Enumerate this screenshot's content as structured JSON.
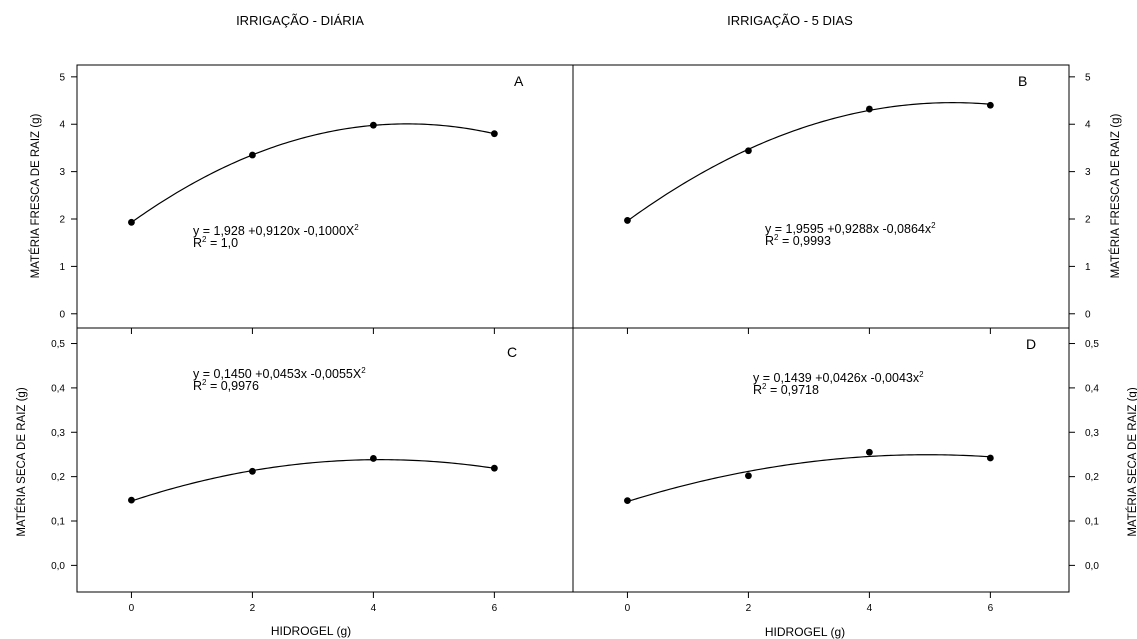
{
  "header": {
    "left_title": "IRRIGAÇÃO - DIÁRIA",
    "right_title": "IRRIGAÇÃO - 5 DIAS"
  },
  "axes": {
    "x_label": "HIDROGEL (g)",
    "y_label_top": "MATÉRIA FRESCA DE RAIZ (g)",
    "y_label_bottom": "MATÉRIA SECA DE RAIZ (g)"
  },
  "chart_data": [
    {
      "type": "scatter",
      "panel": "A",
      "title": "IRRIGAÇÃO - DIÁRIA",
      "xlabel": "HIDROGEL (g)",
      "ylabel": "MATÉRIA FRESCA DE RAIZ (g)",
      "x": [
        0,
        2,
        4,
        6
      ],
      "y": [
        1.93,
        3.35,
        3.98,
        3.8
      ],
      "fit": {
        "a": 1.928,
        "b": 0.912,
        "c": -0.1
      },
      "equation": {
        "main": "y = 1,928 +0,9120x  -0,1000X",
        "exp": "2"
      },
      "r2": {
        "prefix": "R",
        "exp": "2",
        "value": " = 1,0"
      },
      "xticks": [
        "0",
        "2",
        "4",
        "6"
      ],
      "yticks": [
        "0",
        "1",
        "2",
        "3",
        "4",
        "5"
      ],
      "xlim": [
        -0.9,
        7.3
      ],
      "ylim": [
        -0.3,
        5.25
      ],
      "y_axis_side": "left"
    },
    {
      "type": "scatter",
      "panel": "B",
      "title": "IRRIGAÇÃO - 5 DIAS",
      "xlabel": "HIDROGEL (g)",
      "ylabel": "MATÉRIA FRESCA DE RAIZ (g)",
      "x": [
        0,
        2,
        4,
        6
      ],
      "y": [
        1.97,
        3.44,
        4.32,
        4.4
      ],
      "fit": {
        "a": 1.9595,
        "b": 0.9288,
        "c": -0.0864
      },
      "equation": {
        "main": "y = 1,9595 +0,9288x -0,0864x",
        "exp": "2"
      },
      "r2": {
        "prefix": "R",
        "exp": "2",
        "value": " = 0,9993"
      },
      "xticks": [
        "0",
        "2",
        "4",
        "6"
      ],
      "yticks": [
        "0",
        "1",
        "2",
        "3",
        "4",
        "5"
      ],
      "xlim": [
        -0.9,
        7.3
      ],
      "ylim": [
        -0.3,
        5.25
      ],
      "y_axis_side": "right"
    },
    {
      "type": "scatter",
      "panel": "C",
      "title": "IRRIGAÇÃO - DIÁRIA",
      "xlabel": "HIDROGEL (g)",
      "ylabel": "MATÉRIA SECA DE RAIZ (g)",
      "x": [
        0,
        2,
        4,
        6
      ],
      "y": [
        0.147,
        0.212,
        0.241,
        0.219
      ],
      "fit": {
        "a": 0.145,
        "b": 0.0453,
        "c": -0.0055
      },
      "equation": {
        "main": "y = 0,1450 +0,0453x  -0,0055X",
        "exp": "2"
      },
      "r2": {
        "prefix": "R",
        "exp": "2",
        "value": " = 0,9976"
      },
      "xticks": [
        "0",
        "2",
        "4",
        "6"
      ],
      "yticks": [
        "0,0",
        "0,1",
        "0,2",
        "0,3",
        "0,4",
        "0,5"
      ],
      "xlim": [
        -0.9,
        7.3
      ],
      "ylim": [
        -0.06,
        0.535
      ],
      "y_axis_side": "left"
    },
    {
      "type": "scatter",
      "panel": "D",
      "title": "IRRIGAÇÃO - 5 DIAS",
      "xlabel": "HIDROGEL (g)",
      "ylabel": "MATÉRIA SECA DE RAIZ (g)",
      "x": [
        0,
        2,
        4,
        6
      ],
      "y": [
        0.146,
        0.202,
        0.255,
        0.242
      ],
      "fit": {
        "a": 0.1439,
        "b": 0.0426,
        "c": -0.0043
      },
      "equation": {
        "main": "y = 0,1439 +0,0426x -0,0043x",
        "exp": "2"
      },
      "r2": {
        "prefix": "R",
        "exp": "2",
        "value": " = 0,9718"
      },
      "xticks": [
        "0",
        "2",
        "4",
        "6"
      ],
      "yticks": [
        "0,0",
        "0,1",
        "0,2",
        "0,3",
        "0,4",
        "0,5"
      ],
      "xlim": [
        -0.9,
        7.3
      ],
      "ylim": [
        -0.06,
        0.535
      ],
      "y_axis_side": "right"
    }
  ]
}
